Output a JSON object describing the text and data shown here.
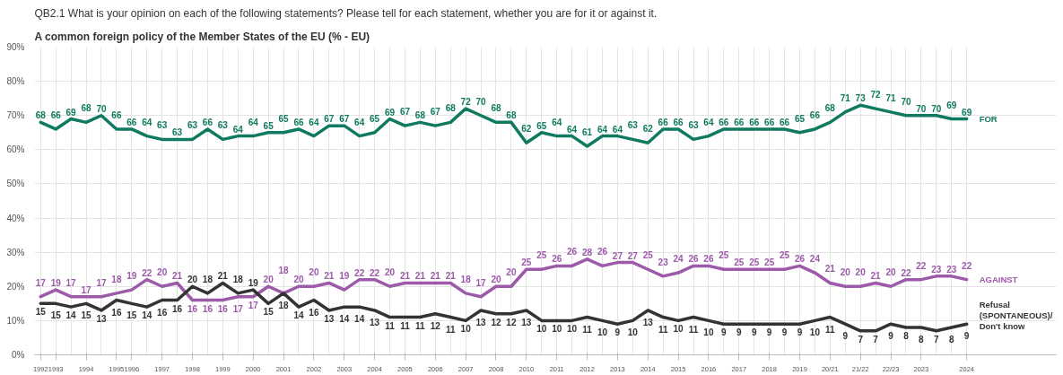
{
  "chart_data": {
    "type": "line",
    "title": "QB2.1 What is your opinion on each of the following statements? Please tell for each statement, whether you are for it or against it.",
    "subtitle": "A common foreign policy of the Member States of the EU (% - EU)",
    "categories": [
      "1992",
      "1993",
      null,
      "1994",
      null,
      "1995",
      "1996",
      null,
      "1997",
      null,
      "1998",
      null,
      "1999",
      null,
      "2000",
      null,
      "2001",
      null,
      "2002",
      null,
      "2003",
      null,
      "2004",
      null,
      "2005",
      null,
      "2006",
      null,
      "2007",
      null,
      "2008",
      null,
      "2010",
      null,
      "2011",
      null,
      "2012",
      null,
      "2013",
      null,
      "2014",
      null,
      "2015",
      null,
      "2016",
      null,
      "2017",
      null,
      "2018",
      null,
      "2019",
      null,
      "20/21",
      null,
      "21/22",
      null,
      "22/23",
      null,
      "2023",
      null,
      null,
      "2024"
    ],
    "ylim": [
      0,
      90
    ],
    "yticks": [
      {
        "value": 0,
        "label": "0%"
      },
      {
        "value": 10,
        "label": "10%"
      },
      {
        "value": 20,
        "label": "20%"
      },
      {
        "value": 30,
        "label": "30%"
      },
      {
        "value": 40,
        "label": "40%"
      },
      {
        "value": 50,
        "label": "50%"
      },
      {
        "value": 60,
        "label": "60%"
      },
      {
        "value": 70,
        "label": "70%"
      },
      {
        "value": 80,
        "label": "80%"
      },
      {
        "value": 90,
        "label": "90%"
      }
    ],
    "grid": true,
    "data_labels": true,
    "line_style": "solid",
    "series": [
      {
        "name": "FOR",
        "color": "#0f7a5f",
        "values": [
          68,
          66,
          69,
          68,
          70,
          66,
          66,
          64,
          63,
          63,
          63,
          66,
          63,
          64,
          64,
          65,
          65,
          66,
          64,
          67,
          67,
          64,
          65,
          69,
          67,
          68,
          67,
          68,
          72,
          70,
          68,
          68,
          62,
          65,
          64,
          64,
          61,
          64,
          64,
          63,
          62,
          66,
          66,
          63,
          64,
          66,
          66,
          66,
          66,
          66,
          65,
          66,
          68,
          71,
          73,
          72,
          71,
          70,
          70,
          70,
          69,
          69
        ]
      },
      {
        "name": "AGAINST",
        "color": "#9c5aa8",
        "values": [
          17,
          19,
          17,
          17,
          17,
          18,
          19,
          22,
          20,
          21,
          16,
          16,
          16,
          17,
          17,
          20,
          18,
          20,
          20,
          21,
          19,
          22,
          22,
          20,
          21,
          21,
          21,
          21,
          18,
          17,
          20,
          20,
          25,
          25,
          26,
          26,
          28,
          26,
          27,
          27,
          25,
          23,
          24,
          26,
          26,
          25,
          25,
          25,
          25,
          25,
          26,
          24,
          21,
          20,
          20,
          21,
          20,
          22,
          22,
          23,
          23,
          22
        ]
      },
      {
        "name": "Refusal (SPONTANEOUS)/ Don't know",
        "color": "#333333",
        "values": [
          15,
          15,
          14,
          15,
          13,
          16,
          15,
          14,
          16,
          16,
          20,
          18,
          21,
          18,
          19,
          15,
          18,
          14,
          16,
          13,
          14,
          14,
          13,
          11,
          11,
          11,
          12,
          11,
          10,
          13,
          12,
          12,
          13,
          10,
          10,
          10,
          11,
          10,
          9,
          10,
          13,
          11,
          10,
          11,
          10,
          9,
          9,
          9,
          9,
          9,
          9,
          10,
          11,
          9,
          7,
          7,
          9,
          8,
          8,
          7,
          8,
          9
        ]
      }
    ]
  }
}
